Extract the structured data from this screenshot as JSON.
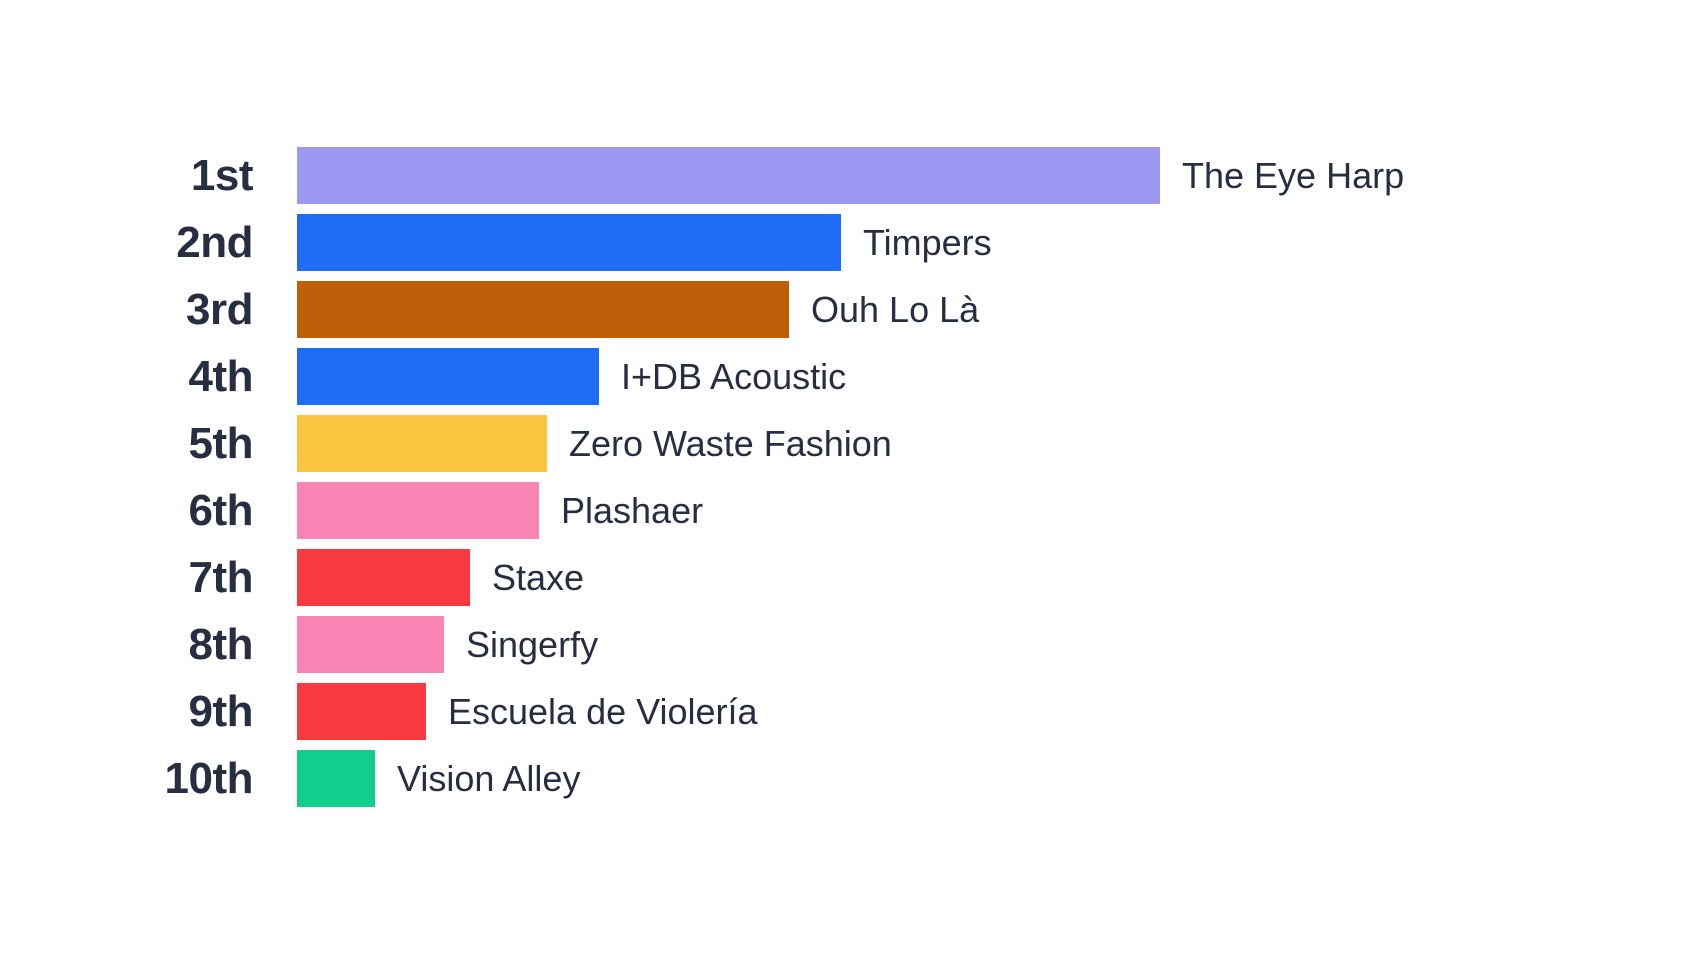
{
  "page": {
    "background": "#ffffff",
    "text_color": "#272e41"
  },
  "chart_data": {
    "type": "bar",
    "orientation": "horizontal",
    "title": "",
    "xlabel": "",
    "ylabel": "",
    "value_axis_visible": false,
    "grid": false,
    "legend": false,
    "categories": [
      "1st",
      "2nd",
      "3rd",
      "4th",
      "5th",
      "6th",
      "7th",
      "8th",
      "9th",
      "10th"
    ],
    "values_note": "no numeric labels shown; values are bar lengths as percent of the longest bar, estimated from pixels",
    "values": [
      100,
      63,
      57,
      35,
      29,
      28,
      20,
      17,
      15,
      9
    ],
    "entries": [
      {
        "rank": "1st",
        "name": "The Eye Harp",
        "color": "#9b99f1",
        "length_pct": 100
      },
      {
        "rank": "2nd",
        "name": "Timpers",
        "color": "#1f6df6",
        "length_pct": 63
      },
      {
        "rank": "3rd",
        "name": "Ouh Lo Là",
        "color": "#c05f0a",
        "length_pct": 57
      },
      {
        "rank": "4th",
        "name": "I+DB Acoustic",
        "color": "#1f6df6",
        "length_pct": 35
      },
      {
        "rank": "5th",
        "name": "Zero Waste Fashion",
        "color": "#fbc43e",
        "length_pct": 29
      },
      {
        "rank": "6th",
        "name": "Plashaer",
        "color": "#f985b5",
        "length_pct": 28
      },
      {
        "rank": "7th",
        "name": "Staxe",
        "color": "#f8393f",
        "length_pct": 20
      },
      {
        "rank": "8th",
        "name": "Singerfy",
        "color": "#f985b5",
        "length_pct": 17
      },
      {
        "rank": "9th",
        "name": "Escuela de Violería",
        "color": "#f8393f",
        "length_pct": 15
      },
      {
        "rank": "10th",
        "name": "Vision Alley",
        "color": "#11ce8c",
        "length_pct": 9
      }
    ]
  }
}
